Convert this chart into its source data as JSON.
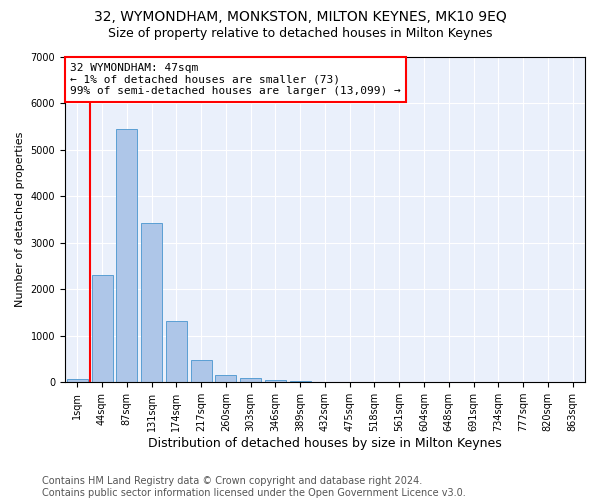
{
  "title": "32, WYMONDHAM, MONKSTON, MILTON KEYNES, MK10 9EQ",
  "subtitle": "Size of property relative to detached houses in Milton Keynes",
  "xlabel": "Distribution of detached houses by size in Milton Keynes",
  "ylabel": "Number of detached properties",
  "footer_line1": "Contains HM Land Registry data © Crown copyright and database right 2024.",
  "footer_line2": "Contains public sector information licensed under the Open Government Licence v3.0.",
  "bar_labels": [
    "1sqm",
    "44sqm",
    "87sqm",
    "131sqm",
    "174sqm",
    "217sqm",
    "260sqm",
    "303sqm",
    "346sqm",
    "389sqm",
    "432sqm",
    "475sqm",
    "518sqm",
    "561sqm",
    "604sqm",
    "648sqm",
    "691sqm",
    "734sqm",
    "777sqm",
    "820sqm",
    "863sqm"
  ],
  "bar_values": [
    73,
    2300,
    5450,
    3420,
    1310,
    470,
    150,
    88,
    50,
    35,
    0,
    0,
    0,
    0,
    0,
    0,
    0,
    0,
    0,
    0,
    0
  ],
  "bar_color": "#aec6e8",
  "bar_edge_color": "#5a9fd4",
  "annotation_line1": "32 WYMONDHAM: 47sqm",
  "annotation_line2": "← 1% of detached houses are smaller (73)",
  "annotation_line3": "99% of semi-detached houses are larger (13,099) →",
  "annotation_box_edge_color": "red",
  "vline_color": "red",
  "ylim": [
    0,
    7000
  ],
  "yticks": [
    0,
    1000,
    2000,
    3000,
    4000,
    5000,
    6000,
    7000
  ],
  "plot_bg_color": "#eaf0fb",
  "title_fontsize": 10,
  "subtitle_fontsize": 9,
  "annotation_fontsize": 8,
  "footer_fontsize": 7,
  "ylabel_fontsize": 8,
  "xlabel_fontsize": 9,
  "tick_fontsize": 7
}
